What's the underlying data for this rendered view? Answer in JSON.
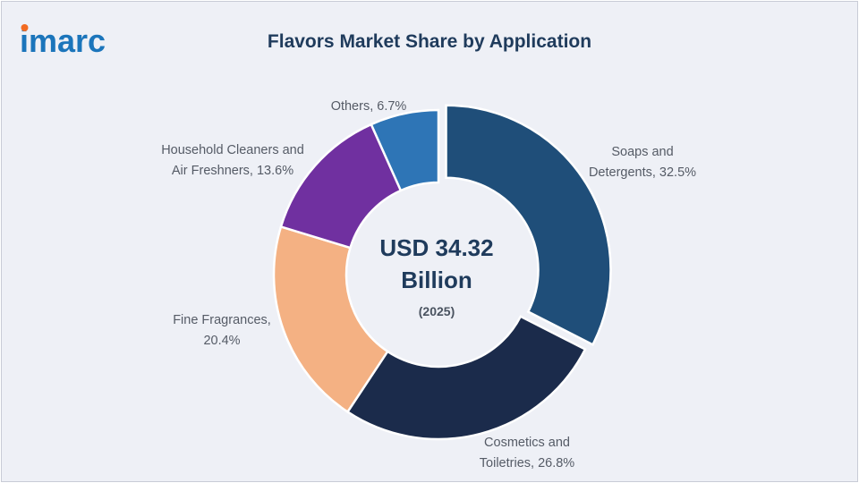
{
  "brand": {
    "logo_text": "imarc",
    "logo_color": "#1b75bb",
    "logo_accent_color": "#f26b22"
  },
  "chart_data": {
    "type": "pie",
    "title": "Flavors Market Share by Application",
    "center": {
      "value_line1": "USD 34.32",
      "value_line2": "Billion",
      "year": "(2025)"
    },
    "slices": [
      {
        "label_lines": [
          "Soaps and",
          "Detergents, 32.5%"
        ],
        "value": 32.5,
        "color": "#1f4e79",
        "exploded": true
      },
      {
        "label_lines": [
          "Cosmetics and",
          "Toiletries, 26.8%"
        ],
        "value": 26.8,
        "color": "#1b2b4b",
        "exploded": false
      },
      {
        "label_lines": [
          "Fine Fragrances,",
          "20.4%"
        ],
        "value": 20.4,
        "color": "#f4b183",
        "exploded": false
      },
      {
        "label_lines": [
          "Household Cleaners and",
          "Air Freshners, 13.6%"
        ],
        "value": 13.6,
        "color": "#7030a0",
        "exploded": false
      },
      {
        "label_lines": [
          "Others, 6.7%"
        ],
        "value": 6.7,
        "color": "#2e75b6",
        "exploded": false
      }
    ]
  }
}
